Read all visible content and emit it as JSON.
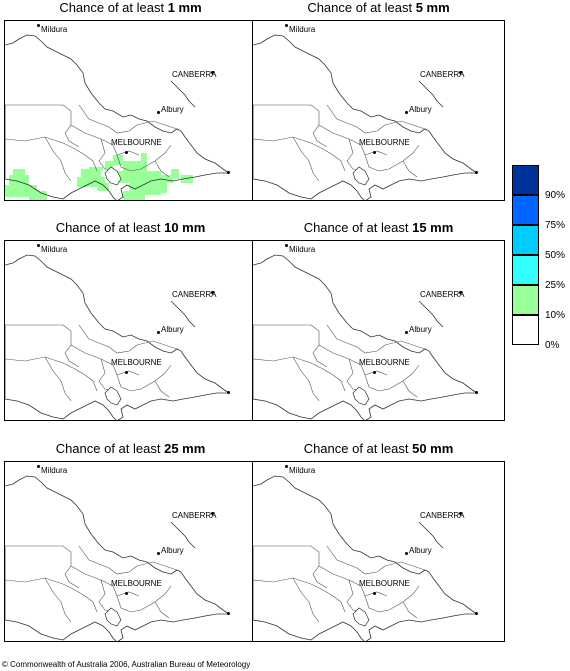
{
  "panels": [
    {
      "prefix": "Chance of at least ",
      "amount": "1 mm",
      "shaded_region": "green-10-25"
    },
    {
      "prefix": "Chance of at least ",
      "amount": "5 mm",
      "shaded_region": "none"
    },
    {
      "prefix": "Chance of at least ",
      "amount": "10 mm",
      "shaded_region": "none"
    },
    {
      "prefix": "Chance of at least ",
      "amount": "15 mm",
      "shaded_region": "none"
    },
    {
      "prefix": "Chance of at least ",
      "amount": "25 mm",
      "shaded_region": "none"
    },
    {
      "prefix": "Chance of at least ",
      "amount": "50 mm",
      "shaded_region": "none"
    }
  ],
  "cities": {
    "mildura": "Mildura",
    "canberra": "CANBERRA",
    "albury": "Albury",
    "melbourne": "MELBOURNE"
  },
  "legend": {
    "swatches": [
      {
        "color": "#003399",
        "range": "90-100"
      },
      {
        "color": "#0066ff",
        "range": "75-90"
      },
      {
        "color": "#00ccff",
        "range": "50-75"
      },
      {
        "color": "#33ffff",
        "range": "25-50"
      },
      {
        "color": "#99ff99",
        "range": "10-25"
      },
      {
        "color": "#ffffff",
        "range": "0-10"
      }
    ],
    "labels": [
      "90%",
      "75%",
      "50%",
      "25%",
      "10%",
      "0%"
    ]
  },
  "copyright": "© Commonwealth of Australia 2006, Australian Bureau of Meteorology"
}
